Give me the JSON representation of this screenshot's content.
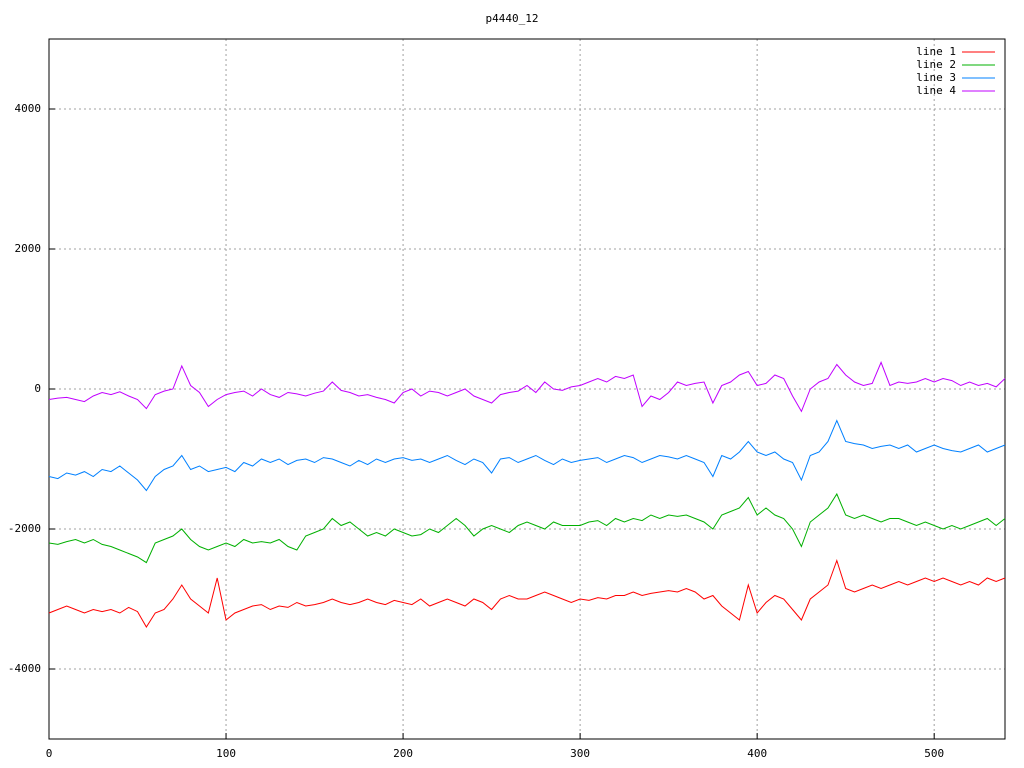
{
  "chart_data": {
    "type": "line",
    "title": "p4440_12",
    "x": [
      0,
      5,
      10,
      15,
      20,
      25,
      30,
      35,
      40,
      45,
      50,
      55,
      60,
      65,
      70,
      75,
      80,
      85,
      90,
      95,
      100,
      105,
      110,
      115,
      120,
      125,
      130,
      135,
      140,
      145,
      150,
      155,
      160,
      165,
      170,
      175,
      180,
      185,
      190,
      195,
      200,
      205,
      210,
      215,
      220,
      225,
      230,
      235,
      240,
      245,
      250,
      255,
      260,
      265,
      270,
      275,
      280,
      285,
      290,
      295,
      300,
      305,
      310,
      315,
      320,
      325,
      330,
      335,
      340,
      345,
      350,
      355,
      360,
      365,
      370,
      375,
      380,
      385,
      390,
      395,
      400,
      405,
      410,
      415,
      420,
      425,
      430,
      435,
      440,
      445,
      450,
      455,
      460,
      465,
      470,
      475,
      480,
      485,
      490,
      495,
      500,
      505,
      510,
      515,
      520,
      525,
      530,
      535,
      540
    ],
    "series": [
      {
        "name": "line 1",
        "color": "#ff0000",
        "values": [
          -3200,
          -3150,
          -3100,
          -3150,
          -3200,
          -3150,
          -3180,
          -3150,
          -3200,
          -3120,
          -3180,
          -3400,
          -3200,
          -3150,
          -3000,
          -2800,
          -3000,
          -3100,
          -3200,
          -2700,
          -3300,
          -3200,
          -3150,
          -3100,
          -3080,
          -3150,
          -3100,
          -3120,
          -3050,
          -3100,
          -3080,
          -3050,
          -3000,
          -3050,
          -3080,
          -3050,
          -3000,
          -3050,
          -3080,
          -3020,
          -3050,
          -3080,
          -3000,
          -3100,
          -3050,
          -3000,
          -3050,
          -3100,
          -3000,
          -3050,
          -3150,
          -3000,
          -2950,
          -3000,
          -3000,
          -2950,
          -2900,
          -2950,
          -3000,
          -3050,
          -3000,
          -3020,
          -2980,
          -3000,
          -2950,
          -2950,
          -2900,
          -2950,
          -2920,
          -2900,
          -2880,
          -2900,
          -2850,
          -2900,
          -3000,
          -2950,
          -3100,
          -3200,
          -3300,
          -2800,
          -3200,
          -3050,
          -2950,
          -3000,
          -3150,
          -3300,
          -3000,
          -2900,
          -2800,
          -2450,
          -2850,
          -2900,
          -2850,
          -2800,
          -2850,
          -2800,
          -2750,
          -2800,
          -2750,
          -2700,
          -2750,
          -2700,
          -2750,
          -2800,
          -2750,
          -2800,
          -2700,
          -2750,
          -2700
        ]
      },
      {
        "name": "line 2",
        "color": "#00b000",
        "values": [
          -2200,
          -2220,
          -2180,
          -2150,
          -2200,
          -2150,
          -2220,
          -2250,
          -2300,
          -2350,
          -2400,
          -2480,
          -2200,
          -2150,
          -2100,
          -2000,
          -2150,
          -2250,
          -2300,
          -2250,
          -2200,
          -2250,
          -2150,
          -2200,
          -2180,
          -2200,
          -2150,
          -2250,
          -2300,
          -2100,
          -2050,
          -2000,
          -1850,
          -1950,
          -1900,
          -2000,
          -2100,
          -2050,
          -2100,
          -2000,
          -2050,
          -2100,
          -2080,
          -2000,
          -2050,
          -1950,
          -1850,
          -1950,
          -2100,
          -2000,
          -1950,
          -2000,
          -2050,
          -1950,
          -1900,
          -1950,
          -2000,
          -1900,
          -1950,
          -1950,
          -1950,
          -1900,
          -1880,
          -1950,
          -1850,
          -1900,
          -1850,
          -1880,
          -1800,
          -1850,
          -1800,
          -1820,
          -1800,
          -1850,
          -1900,
          -2000,
          -1800,
          -1750,
          -1700,
          -1550,
          -1800,
          -1700,
          -1800,
          -1850,
          -2000,
          -2250,
          -1900,
          -1800,
          -1700,
          -1500,
          -1800,
          -1850,
          -1800,
          -1850,
          -1900,
          -1850,
          -1850,
          -1900,
          -1950,
          -1900,
          -1950,
          -2000,
          -1950,
          -2000,
          -1950,
          -1900,
          -1850,
          -1950,
          -1850
        ]
      },
      {
        "name": "line 3",
        "color": "#0080ff",
        "values": [
          -1250,
          -1280,
          -1200,
          -1230,
          -1180,
          -1250,
          -1150,
          -1180,
          -1100,
          -1200,
          -1300,
          -1450,
          -1250,
          -1150,
          -1100,
          -950,
          -1150,
          -1100,
          -1180,
          -1150,
          -1120,
          -1180,
          -1050,
          -1100,
          -1000,
          -1050,
          -1000,
          -1080,
          -1020,
          -1000,
          -1050,
          -980,
          -1000,
          -1050,
          -1100,
          -1020,
          -1080,
          -1000,
          -1050,
          -1000,
          -980,
          -1020,
          -1000,
          -1050,
          -1000,
          -950,
          -1020,
          -1080,
          -1000,
          -1050,
          -1200,
          -1000,
          -980,
          -1050,
          -1000,
          -950,
          -1020,
          -1080,
          -1000,
          -1050,
          -1020,
          -1000,
          -980,
          -1050,
          -1000,
          -950,
          -980,
          -1050,
          -1000,
          -950,
          -970,
          -1000,
          -950,
          -1000,
          -1050,
          -1250,
          -950,
          -1000,
          -900,
          -750,
          -900,
          -950,
          -900,
          -1000,
          -1050,
          -1300,
          -950,
          -900,
          -750,
          -450,
          -750,
          -780,
          -800,
          -850,
          -820,
          -800,
          -850,
          -800,
          -900,
          -850,
          -800,
          -850,
          -880,
          -900,
          -850,
          -800,
          -900,
          -850,
          -800
        ]
      },
      {
        "name": "line 4",
        "color": "#c000ff",
        "values": [
          -150,
          -130,
          -120,
          -150,
          -180,
          -100,
          -50,
          -80,
          -40,
          -100,
          -150,
          -280,
          -80,
          -30,
          0,
          330,
          50,
          -50,
          -250,
          -150,
          -80,
          -50,
          -30,
          -100,
          0,
          -80,
          -120,
          -50,
          -70,
          -100,
          -60,
          -30,
          100,
          -20,
          -50,
          -100,
          -80,
          -120,
          -150,
          -200,
          -50,
          0,
          -100,
          -30,
          -50,
          -100,
          -50,
          0,
          -100,
          -150,
          -200,
          -80,
          -50,
          -30,
          50,
          -50,
          100,
          0,
          -20,
          30,
          50,
          100,
          150,
          100,
          180,
          150,
          200,
          -250,
          -100,
          -150,
          -50,
          100,
          50,
          80,
          100,
          -200,
          50,
          100,
          200,
          250,
          50,
          80,
          200,
          150,
          -100,
          -320,
          0,
          100,
          150,
          350,
          200,
          100,
          50,
          80,
          380,
          50,
          100,
          80,
          100,
          150,
          100,
          150,
          120,
          50,
          100,
          50,
          80,
          30,
          150
        ]
      }
    ],
    "xlim": [
      0,
      540
    ],
    "ylim": [
      -5000,
      5000
    ],
    "xticks": [
      0,
      100,
      200,
      300,
      400,
      500
    ],
    "yticks": [
      -4000,
      -2000,
      0,
      2000,
      4000
    ],
    "grid": true,
    "legend": "top-right"
  }
}
